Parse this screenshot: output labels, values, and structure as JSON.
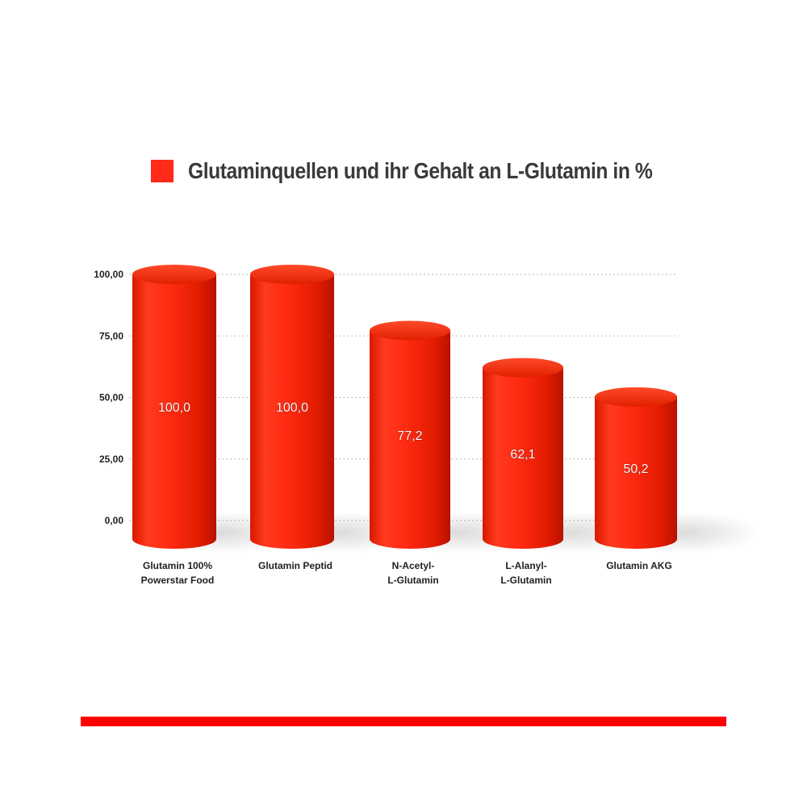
{
  "chart_data": {
    "type": "bar",
    "title": "",
    "categories": [
      [
        "Glutamin 100%",
        "Powerstar Food"
      ],
      [
        "Glutamin Peptid"
      ],
      [
        "N-Acetyl-",
        "L-Glutamin"
      ],
      [
        "L-Alanyl-",
        "L-Glutamin"
      ],
      [
        "Glutamin AKG"
      ]
    ],
    "series": [
      {
        "name": "Glutaminquellen und ihr Gehalt an L-Glutamin in %",
        "values": [
          100.0,
          100.0,
          77.2,
          62.1,
          50.2
        ],
        "value_labels": [
          "100,0",
          "100,0",
          "77,2",
          "62,1",
          "50,2"
        ]
      }
    ],
    "yticks": [
      {
        "value": 0,
        "label": "0,00"
      },
      {
        "value": 25,
        "label": "25,00"
      },
      {
        "value": 50,
        "label": "50,00"
      },
      {
        "value": 75,
        "label": "75,00"
      },
      {
        "value": 100,
        "label": "100,00"
      }
    ],
    "ylim": [
      0,
      100
    ],
    "xlabel": "",
    "ylabel": "",
    "grid": true,
    "legend_position": "top",
    "colors": {
      "bar": "#ff2a1a",
      "bar_dark": "#c81400",
      "grid": "#bbbbbb",
      "accent_rule": "#ff0000"
    }
  }
}
